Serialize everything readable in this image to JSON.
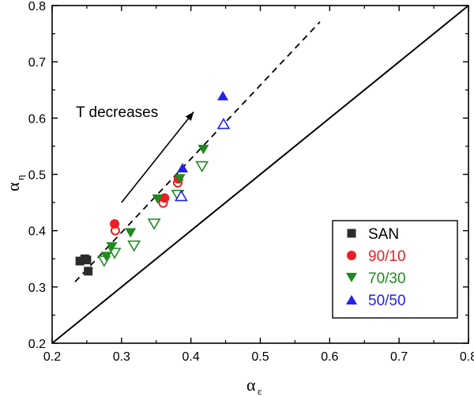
{
  "chart_data": {
    "type": "scatter",
    "xlabel": "α",
    "xlabel_sub": "ε",
    "ylabel": "α",
    "ylabel_sub": "η",
    "xlim": [
      0.2,
      0.8
    ],
    "ylim": [
      0.2,
      0.8
    ],
    "xticks": [
      "0.2",
      "0.3",
      "0.4",
      "0.5",
      "0.6",
      "0.7",
      "0.8"
    ],
    "yticks": [
      "0.2",
      "0.3",
      "0.4",
      "0.5",
      "0.6",
      "0.7",
      "0.8"
    ],
    "grid": false,
    "legend_position": "bottom-right",
    "annotation": {
      "text": "T decreases",
      "arrow_from": [
        0.3,
        0.45
      ],
      "arrow_to": [
        0.404,
        0.611
      ]
    },
    "reference_lines": [
      {
        "style": "solid",
        "points": [
          [
            0.2,
            0.2
          ],
          [
            0.8,
            0.8
          ]
        ]
      },
      {
        "style": "dashed",
        "points": [
          [
            0.233,
            0.309
          ],
          [
            0.586,
            0.771
          ]
        ]
      }
    ],
    "series": [
      {
        "name": "SAN",
        "color": "#2b2b2b",
        "marker": "square",
        "filled": [
          [
            0.24,
            0.346
          ],
          [
            0.247,
            0.35
          ],
          [
            0.25,
            0.348
          ],
          [
            0.252,
            0.328
          ]
        ],
        "open": []
      },
      {
        "name": "90/10",
        "color": "#ee1c24",
        "marker": "circle",
        "filled": [
          [
            0.29,
            0.412
          ],
          [
            0.362,
            0.458
          ],
          [
            0.382,
            0.492
          ]
        ],
        "open": [
          [
            0.291,
            0.4
          ],
          [
            0.36,
            0.449
          ],
          [
            0.381,
            0.485
          ]
        ]
      },
      {
        "name": "70/30",
        "color": "#1f8a1f",
        "marker": "triangle-down",
        "filled": [
          [
            0.278,
            0.354
          ],
          [
            0.286,
            0.371
          ],
          [
            0.313,
            0.396
          ],
          [
            0.352,
            0.456
          ],
          [
            0.384,
            0.492
          ],
          [
            0.418,
            0.544
          ]
        ],
        "open": [
          [
            0.275,
            0.346
          ],
          [
            0.29,
            0.36
          ],
          [
            0.318,
            0.373
          ],
          [
            0.347,
            0.412
          ],
          [
            0.381,
            0.463
          ],
          [
            0.416,
            0.514
          ]
        ]
      },
      {
        "name": "50/50",
        "color": "#2222ee",
        "marker": "triangle-up",
        "filled": [
          [
            0.388,
            0.512
          ],
          [
            0.446,
            0.64
          ]
        ],
        "open": [
          [
            0.386,
            0.462
          ],
          [
            0.447,
            0.59
          ]
        ]
      }
    ]
  }
}
